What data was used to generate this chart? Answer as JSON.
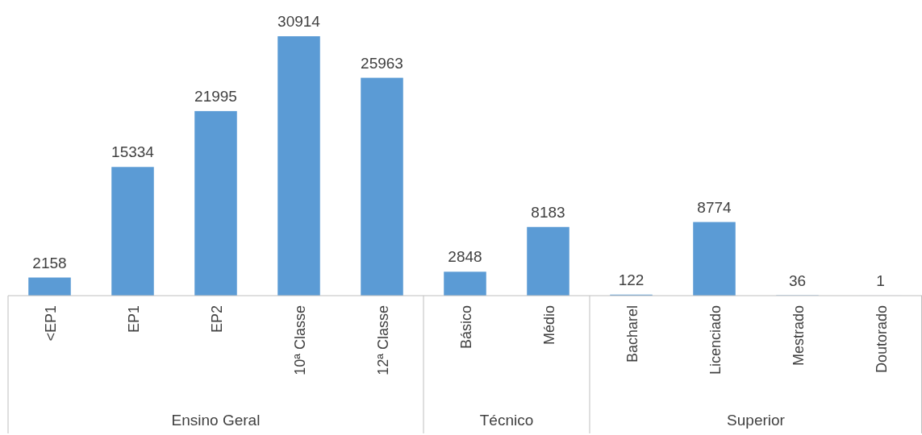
{
  "chart_data": {
    "type": "bar",
    "categories": [
      "<EP1",
      "EP1",
      "EP2",
      "10ª Classe",
      "12ª Classe",
      "Básico",
      "Médio",
      "Bacharel",
      "Licenciado",
      "Mestrado",
      "Doutorado"
    ],
    "values": [
      2158,
      15334,
      21995,
      30914,
      25963,
      2848,
      8183,
      122,
      8774,
      36,
      1
    ],
    "color": "#5b9bd5",
    "data_labels": true,
    "annotations": [
      "Ensino Geral",
      "Técnico",
      "Superior"
    ]
  }
}
